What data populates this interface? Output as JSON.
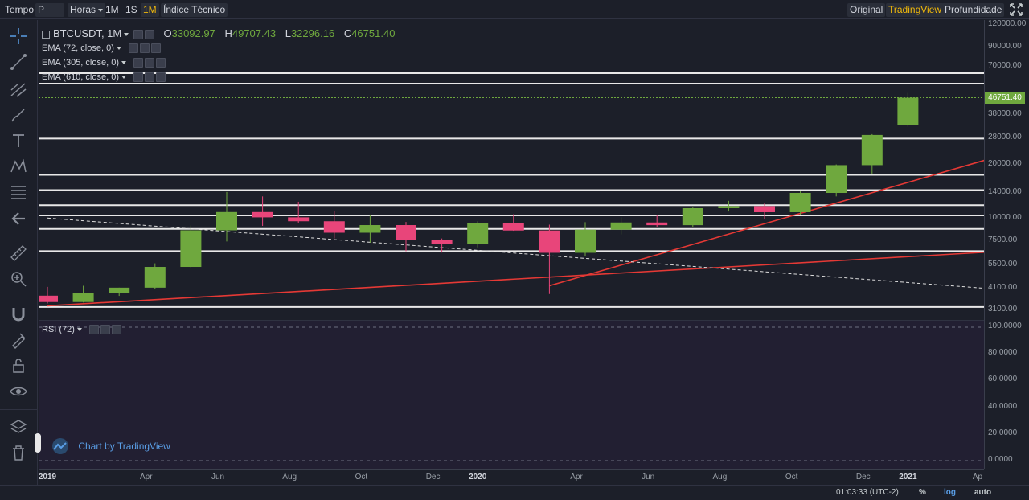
{
  "toolbar": {
    "tempo": "Tempo",
    "period": "P",
    "horas": "Horas",
    "btn_1m": "1M",
    "btn_1s": "1S",
    "btn_1m_active": "1M",
    "indicator": "Índice Técnico",
    "views": [
      "Original",
      "TradingView",
      "Profundidade"
    ],
    "active_view": "TradingView"
  },
  "legend": {
    "symbol": "BTCUSDT, 1M",
    "open_label": "O",
    "open": "33092.97",
    "high_label": "H",
    "high": "49707.43",
    "low_label": "L",
    "low": "32296.16",
    "close_label": "C",
    "close": "46751.40",
    "ema": [
      "EMA (72, close, 0)",
      "EMA (305, close, 0)",
      "EMA (610, close, 0)"
    ],
    "rsi": "RSI (72)"
  },
  "price_scale": {
    "labels": [
      "120000.00",
      "90000.00",
      "70000.00",
      "38000.00",
      "28000.00",
      "20000.00",
      "14000.00",
      "10000.00",
      "7500.00",
      "5500.00",
      "4100.00",
      "3100.00"
    ],
    "last_price": "46751.40",
    "up_color": "#6fa83e",
    "down_color": "#e8457a"
  },
  "rsi_scale": {
    "labels": [
      "100.0000",
      "80.0000",
      "60.0000",
      "40.0000",
      "20.0000",
      "0.0000"
    ]
  },
  "time_axis": {
    "labels": [
      {
        "text": "2019",
        "year": true
      },
      {
        "text": "Apr",
        "year": false
      },
      {
        "text": "Jun",
        "year": false
      },
      {
        "text": "Aug",
        "year": false
      },
      {
        "text": "Oct",
        "year": false
      },
      {
        "text": "Dec",
        "year": false
      },
      {
        "text": "2020",
        "year": true
      },
      {
        "text": "Apr",
        "year": false
      },
      {
        "text": "Jun",
        "year": false
      },
      {
        "text": "Aug",
        "year": false
      },
      {
        "text": "Oct",
        "year": false
      },
      {
        "text": "Dec",
        "year": false
      },
      {
        "text": "2021",
        "year": true
      },
      {
        "text": "Ap",
        "year": false
      }
    ]
  },
  "bottom_bar": {
    "clock": "01:03:33 (UTC-2)",
    "percent": "%",
    "log": "log",
    "auto": "auto"
  },
  "watermark": "Chart by TradingView",
  "chart_data": {
    "type": "candlestick",
    "scale": "log",
    "ylim": [
      3100,
      120000
    ],
    "months": [
      "2019-01",
      "2019-02",
      "2019-03",
      "2019-04",
      "2019-05",
      "2019-06",
      "2019-07",
      "2019-08",
      "2019-09",
      "2019-10",
      "2019-11",
      "2019-12",
      "2020-01",
      "2020-02",
      "2020-03",
      "2020-04",
      "2020-05",
      "2020-06",
      "2020-07",
      "2020-08",
      "2020-09",
      "2020-10",
      "2020-11",
      "2020-12",
      "2021-01"
    ],
    "open": [
      3700,
      3410,
      3820,
      4100,
      5350,
      8550,
      10800,
      10090,
      9600,
      8290,
      9140,
      7540,
      7200,
      9350,
      8530,
      6410,
      8620,
      9450,
      9130,
      11350,
      11650,
      10780,
      13800,
      19700,
      33092.97
    ],
    "high": [
      4140,
      4200,
      4100,
      5600,
      9100,
      13970,
      13200,
      12330,
      10950,
      10450,
      9510,
      7700,
      9590,
      10500,
      9190,
      9490,
      10080,
      10400,
      11450,
      12470,
      12060,
      14100,
      19880,
      29300,
      49707.43
    ],
    "low": [
      3350,
      3390,
      3690,
      4020,
      5300,
      7410,
      9050,
      9340,
      7710,
      7300,
      6540,
      6430,
      6870,
      8500,
      3780,
      6150,
      8120,
      8930,
      8950,
      10880,
      9880,
      10380,
      13200,
      17550,
      32296.16
    ],
    "close": [
      3410,
      3820,
      4100,
      5350,
      8550,
      10800,
      10090,
      9600,
      8290,
      9140,
      7540,
      7200,
      9350,
      8530,
      6410,
      8620,
      9450,
      9130,
      11350,
      11650,
      10780,
      13800,
      19700,
      29000,
      46751.4
    ],
    "horizontal_levels": [
      3200,
      6550,
      8700,
      10350,
      11800,
      14300,
      17400,
      27700,
      56000,
      64000
    ],
    "trendlines": [
      {
        "color": "#e53935",
        "from": [
          "2019-01",
          3250
        ],
        "to": [
          "2021-04",
          6600
        ]
      },
      {
        "color": "#e53935",
        "from": [
          "2020-03",
          4200
        ],
        "to": [
          "2021-04",
          23500
        ]
      },
      {
        "color": "#dddddd",
        "dashed": true,
        "from": [
          "2019-01",
          10000
        ],
        "to": [
          "2021-04",
          3950
        ]
      }
    ]
  }
}
